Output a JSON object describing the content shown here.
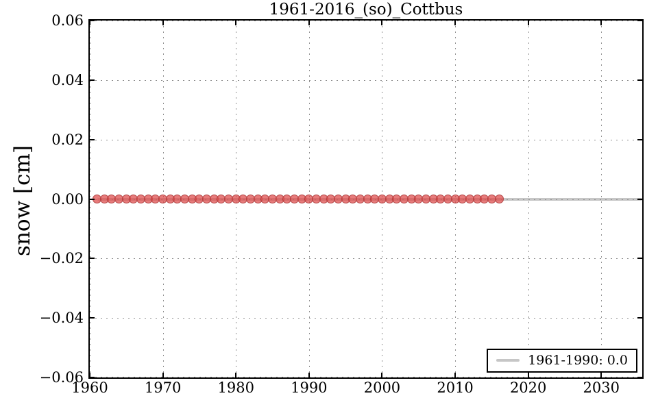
{
  "figure": {
    "background": "#ffffff",
    "spine_color": "#000000",
    "grid_color": "#8e8e8e"
  },
  "chart_data": {
    "type": "scatter",
    "title": "1961-2016_(so)_Cottbus",
    "xlabel": "",
    "ylabel": "snow [cm]",
    "xlim": [
      1960,
      2035.6
    ],
    "ylim": [
      -0.06,
      0.06
    ],
    "xticks": [
      1960,
      1970,
      1980,
      1990,
      2000,
      2010,
      2020,
      2030
    ],
    "xtick_labels": [
      "1960",
      "1970",
      "1980",
      "1990",
      "2000",
      "2010",
      "2020",
      "2030"
    ],
    "yticks": [
      0.06,
      0.04,
      0.02,
      0.0,
      -0.02,
      -0.04,
      -0.06
    ],
    "ytick_labels": [
      "0.06",
      "0.04",
      "0.02",
      "0.00",
      "−0.02",
      "−0.04",
      "−0.06"
    ],
    "grid": "dotted",
    "legend": {
      "position": "lower-right",
      "entries": [
        {
          "label": "1961-1990: 0.0",
          "color": "#c6c6c6",
          "type": "line"
        }
      ]
    },
    "series": [
      {
        "name": "reference-mean-1961-1990",
        "type": "line",
        "color": "#c6c6c6",
        "x": [
          1961,
          2035.6
        ],
        "y": [
          0.0,
          0.0
        ]
      },
      {
        "name": "annual-snow",
        "type": "scatter",
        "marker": "circle",
        "marker_fill": "#de4848",
        "marker_edge": "#ac3e3e",
        "x": [
          1961,
          1962,
          1963,
          1964,
          1965,
          1966,
          1967,
          1968,
          1969,
          1970,
          1971,
          1972,
          1973,
          1974,
          1975,
          1976,
          1977,
          1978,
          1979,
          1980,
          1981,
          1982,
          1983,
          1984,
          1985,
          1986,
          1987,
          1988,
          1989,
          1990,
          1991,
          1992,
          1993,
          1994,
          1995,
          1996,
          1997,
          1998,
          1999,
          2000,
          2001,
          2002,
          2003,
          2004,
          2005,
          2006,
          2007,
          2008,
          2009,
          2010,
          2011,
          2012,
          2013,
          2014,
          2015,
          2016
        ],
        "y": [
          0,
          0,
          0,
          0,
          0,
          0,
          0,
          0,
          0,
          0,
          0,
          0,
          0,
          0,
          0,
          0,
          0,
          0,
          0,
          0,
          0,
          0,
          0,
          0,
          0,
          0,
          0,
          0,
          0,
          0,
          0,
          0,
          0,
          0,
          0,
          0,
          0,
          0,
          0,
          0,
          0,
          0,
          0,
          0,
          0,
          0,
          0,
          0,
          0,
          0,
          0,
          0,
          0,
          0,
          0,
          0
        ]
      }
    ]
  }
}
